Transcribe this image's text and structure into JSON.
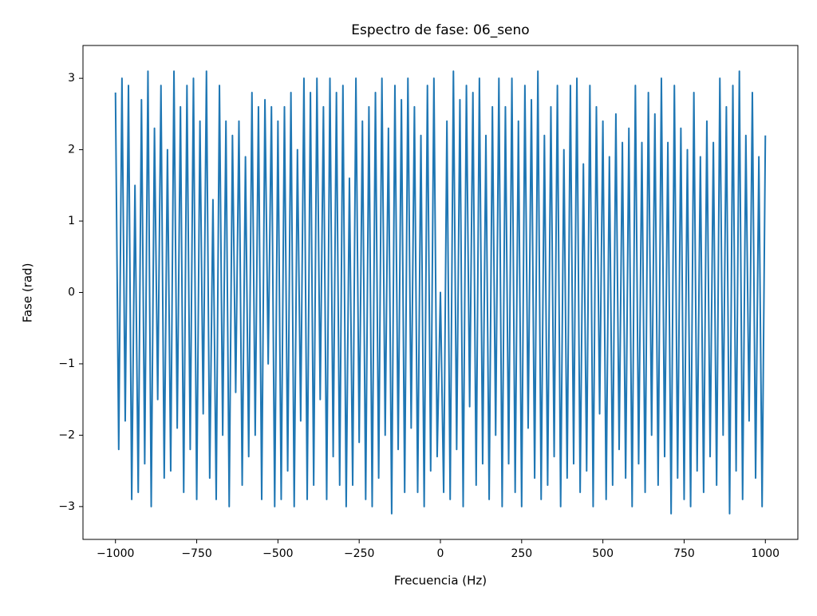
{
  "chart_data": {
    "type": "line",
    "title": "Espectro de fase: 06_seno",
    "x_label": "Frecuencia (Hz)",
    "y_label": "Fase (rad)",
    "x": [
      -1000,
      -990,
      -980,
      -970,
      -960,
      -950,
      -940,
      -930,
      -920,
      -910,
      -900,
      -890,
      -880,
      -870,
      -860,
      -850,
      -840,
      -830,
      -820,
      -810,
      -800,
      -790,
      -780,
      -770,
      -760,
      -750,
      -740,
      -730,
      -720,
      -710,
      -700,
      -690,
      -680,
      -670,
      -660,
      -650,
      -640,
      -630,
      -620,
      -610,
      -600,
      -590,
      -580,
      -570,
      -560,
      -550,
      -540,
      -530,
      -520,
      -510,
      -500,
      -490,
      -480,
      -470,
      -460,
      -450,
      -440,
      -430,
      -420,
      -410,
      -400,
      -390,
      -380,
      -370,
      -360,
      -350,
      -340,
      -330,
      -320,
      -310,
      -300,
      -290,
      -280,
      -270,
      -260,
      -250,
      -240,
      -230,
      -220,
      -210,
      -200,
      -190,
      -180,
      -170,
      -160,
      -150,
      -140,
      -130,
      -120,
      -110,
      -100,
      -90,
      -80,
      -70,
      -60,
      -50,
      -40,
      -30,
      -20,
      -10,
      0,
      10,
      20,
      30,
      40,
      50,
      60,
      70,
      80,
      90,
      100,
      110,
      120,
      130,
      140,
      150,
      160,
      170,
      180,
      190,
      200,
      210,
      220,
      230,
      240,
      250,
      260,
      270,
      280,
      290,
      300,
      310,
      320,
      330,
      340,
      350,
      360,
      370,
      380,
      390,
      400,
      410,
      420,
      430,
      440,
      450,
      460,
      470,
      480,
      490,
      500,
      510,
      520,
      530,
      540,
      550,
      560,
      570,
      580,
      590,
      600,
      610,
      620,
      630,
      640,
      650,
      660,
      670,
      680,
      690,
      700,
      710,
      720,
      730,
      740,
      750,
      760,
      770,
      780,
      790,
      800,
      810,
      820,
      830,
      840,
      850,
      860,
      870,
      880,
      890,
      900,
      910,
      920,
      930,
      940,
      950,
      960,
      970,
      980,
      990,
      1000
    ],
    "series": [
      {
        "name": "fase",
        "color": "#1f77b4",
        "values": [
          2.8,
          -2.2,
          3.0,
          -1.8,
          2.9,
          -2.9,
          1.5,
          -2.8,
          2.7,
          -2.4,
          3.1,
          -3.0,
          2.3,
          -1.5,
          2.9,
          -2.6,
          2.0,
          -2.5,
          3.1,
          -1.9,
          2.6,
          -2.8,
          2.9,
          -2.2,
          3.0,
          -2.9,
          2.4,
          -1.7,
          3.1,
          -2.6,
          1.3,
          -2.9,
          2.9,
          -2.0,
          2.4,
          -3.0,
          2.2,
          -1.4,
          2.4,
          -2.7,
          1.9,
          -2.3,
          2.8,
          -2.0,
          2.6,
          -2.9,
          2.7,
          -1.0,
          2.6,
          -3.0,
          2.4,
          -2.9,
          2.6,
          -2.5,
          2.8,
          -3.0,
          2.0,
          -1.8,
          3.0,
          -2.9,
          2.8,
          -2.7,
          3.0,
          -1.5,
          2.6,
          -2.9,
          3.0,
          -2.3,
          2.8,
          -2.7,
          2.9,
          -3.0,
          1.6,
          -2.7,
          3.0,
          -2.1,
          2.4,
          -2.9,
          2.6,
          -3.0,
          2.8,
          -2.6,
          3.0,
          -2.0,
          2.3,
          -3.1,
          2.9,
          -2.2,
          2.7,
          -2.8,
          3.0,
          -1.9,
          2.6,
          -2.8,
          2.2,
          -3.0,
          2.9,
          -2.5,
          3.0,
          -2.3,
          0.0,
          -2.8,
          2.4,
          -2.9,
          3.1,
          -2.2,
          2.7,
          -3.0,
          2.9,
          -1.6,
          2.8,
          -2.7,
          3.0,
          -2.4,
          2.2,
          -2.9,
          2.6,
          -2.0,
          3.0,
          -3.0,
          2.6,
          -2.4,
          3.0,
          -2.8,
          2.4,
          -3.0,
          2.9,
          -1.9,
          2.7,
          -2.6,
          3.1,
          -2.9,
          2.2,
          -2.7,
          2.6,
          -2.3,
          2.9,
          -3.0,
          2.0,
          -2.6,
          2.9,
          -2.4,
          3.0,
          -2.8,
          1.8,
          -2.5,
          2.9,
          -3.0,
          2.6,
          -1.7,
          2.4,
          -2.9,
          1.9,
          -2.7,
          2.5,
          -2.2,
          2.1,
          -2.6,
          2.3,
          -3.0,
          2.9,
          -2.4,
          2.1,
          -2.8,
          2.8,
          -2.0,
          2.5,
          -2.7,
          3.0,
          -2.3,
          2.1,
          -3.1,
          2.9,
          -2.6,
          2.3,
          -2.9,
          2.0,
          -3.0,
          2.8,
          -2.5,
          1.9,
          -2.8,
          2.4,
          -2.3,
          2.1,
          -2.7,
          3.0,
          -2.0,
          2.6,
          -3.1,
          2.9,
          -2.5,
          3.1,
          -2.9,
          2.2,
          -1.8,
          2.8,
          -2.6,
          1.9,
          -3.0,
          2.2
        ]
      }
    ],
    "xlim": [
      -1100,
      1100
    ],
    "ylim": [
      -3.46,
      3.46
    ],
    "xticks": [
      {
        "value": -1000,
        "label": "−1000"
      },
      {
        "value": -750,
        "label": "−750"
      },
      {
        "value": -500,
        "label": "−500"
      },
      {
        "value": -250,
        "label": "−250"
      },
      0,
      250,
      500,
      750,
      1000
    ],
    "yticks": [
      {
        "value": -3,
        "label": "−3"
      },
      {
        "value": -2,
        "label": "−2"
      },
      {
        "value": -1,
        "label": "−1"
      },
      0,
      1,
      2,
      3
    ]
  }
}
